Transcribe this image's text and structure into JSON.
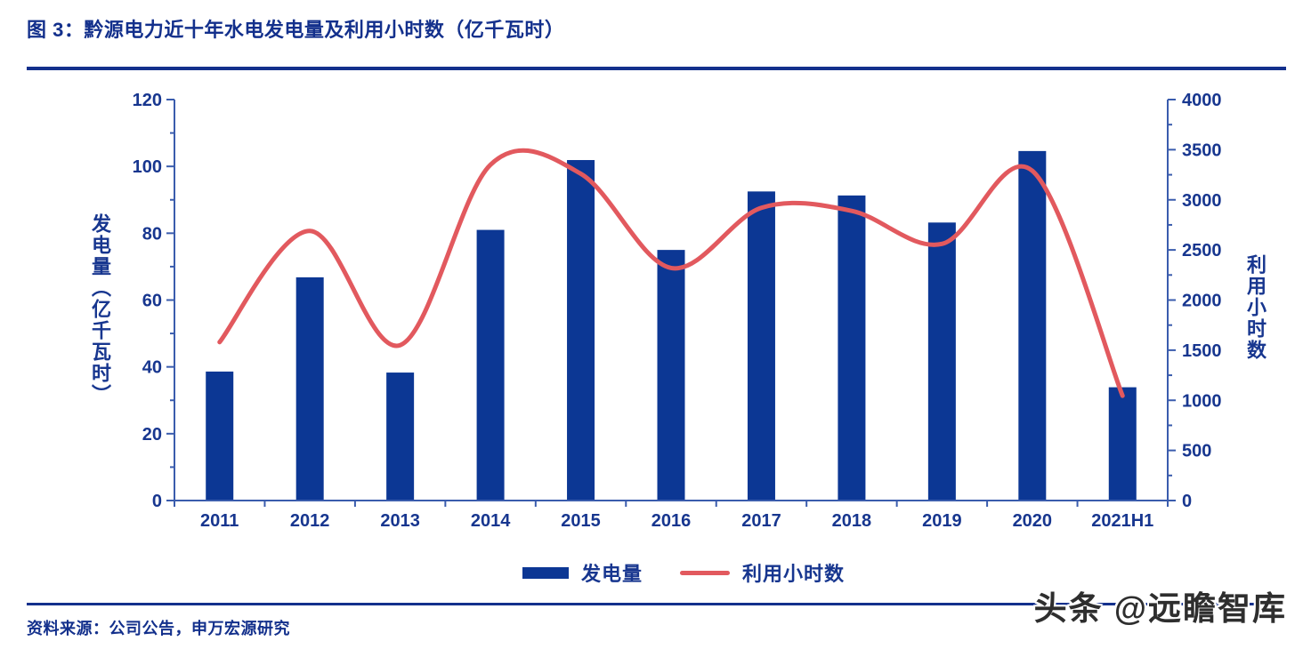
{
  "figure": {
    "title": "图 3：黔源电力近十年水电发电量及利用小时数（亿千瓦时）",
    "source": "资料来源：公司公告，申万宏源研究",
    "watermark": "头条 @远瞻智库"
  },
  "colors": {
    "navy_text": "#17368f",
    "title_navy": "#13308c",
    "axis_stroke": "#3a5cad",
    "bar_fill": "#0c3794",
    "line_stroke": "#e2595e",
    "watermark_text": "#2e2e2e"
  },
  "chart_data": {
    "type": "combo-bar-line",
    "categories": [
      "2011",
      "2012",
      "2013",
      "2014",
      "2015",
      "2016",
      "2017",
      "2018",
      "2019",
      "2020",
      "2021H1"
    ],
    "series": [
      {
        "name": "发电量",
        "type": "bar",
        "axis": "left",
        "values": [
          38.6,
          66.8,
          38.3,
          81.0,
          101.9,
          75.0,
          92.5,
          91.3,
          83.2,
          104.6,
          33.9
        ]
      },
      {
        "name": "利用小时数",
        "type": "line",
        "axis": "right",
        "values": [
          1580,
          2690,
          1550,
          3350,
          3260,
          2320,
          2920,
          2890,
          2560,
          3290,
          1045
        ]
      }
    ],
    "left_axis": {
      "title": "发电量（亿千瓦时）",
      "min": 0,
      "max": 120,
      "major_step": 20,
      "minor_step": 10,
      "tick_labels": [
        "0",
        "20",
        "40",
        "60",
        "80",
        "100",
        "120"
      ]
    },
    "right_axis": {
      "title": "利用小时数",
      "min": 0,
      "max": 4000,
      "major_step": 500,
      "minor_step": 250,
      "tick_labels": [
        "0",
        "500",
        "1000",
        "1500",
        "2000",
        "2500",
        "3000",
        "3500",
        "4000"
      ]
    },
    "grid": false,
    "legend_position": "bottom"
  }
}
